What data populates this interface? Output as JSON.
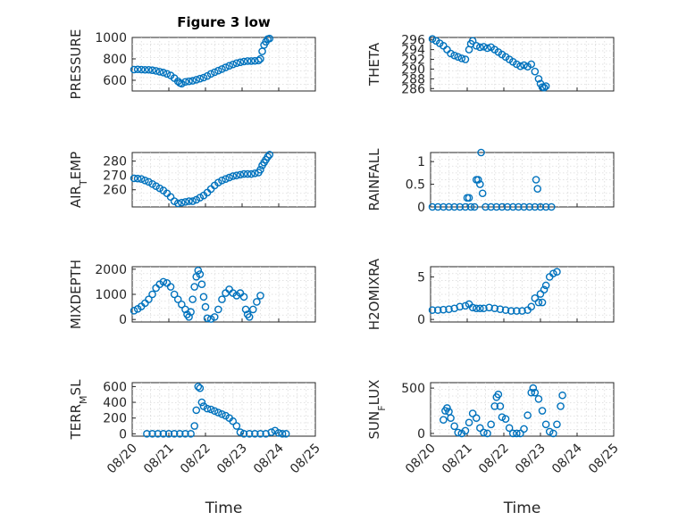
{
  "chart_data": [
    {
      "type": "scatter",
      "title": "Figure 3 low",
      "ylabel": "PRESSURE",
      "ylim": [
        500,
        1000
      ],
      "yticks": [
        "1000",
        "800",
        "600"
      ],
      "ytick_values": [
        1000,
        800,
        600
      ],
      "grid": true,
      "points": [
        [
          0.05,
          700
        ],
        [
          0.15,
          702
        ],
        [
          0.25,
          700
        ],
        [
          0.35,
          698
        ],
        [
          0.45,
          698
        ],
        [
          0.55,
          694
        ],
        [
          0.65,
          688
        ],
        [
          0.75,
          680
        ],
        [
          0.85,
          672
        ],
        [
          0.95,
          660
        ],
        [
          1.05,
          645
        ],
        [
          1.15,
          620
        ],
        [
          1.25,
          590
        ],
        [
          1.3,
          575
        ],
        [
          1.35,
          568
        ],
        [
          1.45,
          585
        ],
        [
          1.55,
          590
        ],
        [
          1.65,
          595
        ],
        [
          1.75,
          605
        ],
        [
          1.85,
          615
        ],
        [
          1.95,
          625
        ],
        [
          2.05,
          640
        ],
        [
          2.15,
          660
        ],
        [
          2.25,
          675
        ],
        [
          2.35,
          690
        ],
        [
          2.45,
          705
        ],
        [
          2.55,
          720
        ],
        [
          2.65,
          735
        ],
        [
          2.75,
          748
        ],
        [
          2.85,
          760
        ],
        [
          2.95,
          768
        ],
        [
          3.05,
          775
        ],
        [
          3.15,
          780
        ],
        [
          3.25,
          780
        ],
        [
          3.35,
          782
        ],
        [
          3.45,
          785
        ],
        [
          3.5,
          800
        ],
        [
          3.55,
          870
        ],
        [
          3.6,
          930
        ],
        [
          3.65,
          960
        ],
        [
          3.7,
          985
        ],
        [
          3.75,
          990
        ]
      ]
    },
    {
      "type": "scatter",
      "ylabel": "THETA",
      "ylim": [
        285.5,
        296.5
      ],
      "yticks": [
        "296",
        "294",
        "292",
        "290",
        "288",
        "286"
      ],
      "ytick_values": [
        296,
        294,
        292,
        290,
        288,
        286
      ],
      "grid": true,
      "points": [
        [
          0.05,
          296.2
        ],
        [
          0.15,
          295.8
        ],
        [
          0.25,
          295.3
        ],
        [
          0.35,
          294.8
        ],
        [
          0.45,
          294.0
        ],
        [
          0.55,
          293.2
        ],
        [
          0.65,
          292.8
        ],
        [
          0.75,
          292.5
        ],
        [
          0.85,
          292.2
        ],
        [
          0.95,
          292.0
        ],
        [
          1.05,
          294.0
        ],
        [
          1.1,
          295.2
        ],
        [
          1.15,
          295.8
        ],
        [
          1.25,
          294.8
        ],
        [
          1.35,
          294.5
        ],
        [
          1.45,
          294.6
        ],
        [
          1.55,
          294.3
        ],
        [
          1.65,
          294.5
        ],
        [
          1.75,
          294.0
        ],
        [
          1.85,
          293.5
        ],
        [
          1.95,
          293.0
        ],
        [
          2.05,
          292.5
        ],
        [
          2.15,
          292.0
        ],
        [
          2.25,
          291.5
        ],
        [
          2.35,
          291.0
        ],
        [
          2.45,
          290.6
        ],
        [
          2.55,
          290.8
        ],
        [
          2.65,
          290.5
        ],
        [
          2.75,
          291.0
        ],
        [
          2.85,
          289.5
        ],
        [
          2.95,
          288.0
        ],
        [
          3.0,
          287.0
        ],
        [
          3.05,
          286.3
        ],
        [
          3.1,
          286.2
        ],
        [
          3.15,
          286.5
        ]
      ]
    },
    {
      "type": "scatter",
      "ylabel": "AIR",
      "ylabel_sub": "T",
      "ylabel_rest": "EMP",
      "ylim": [
        248,
        286
      ],
      "yticks": [
        "280",
        "270",
        "260"
      ],
      "ytick_values": [
        280,
        270,
        260
      ],
      "grid": true,
      "points": [
        [
          0.05,
          268
        ],
        [
          0.15,
          267.8
        ],
        [
          0.25,
          267.5
        ],
        [
          0.35,
          266.5
        ],
        [
          0.45,
          265.5
        ],
        [
          0.55,
          264
        ],
        [
          0.65,
          262.5
        ],
        [
          0.75,
          261
        ],
        [
          0.85,
          259.5
        ],
        [
          0.95,
          257.5
        ],
        [
          1.05,
          255
        ],
        [
          1.15,
          252
        ],
        [
          1.25,
          250.5
        ],
        [
          1.35,
          251
        ],
        [
          1.45,
          251.5
        ],
        [
          1.55,
          252
        ],
        [
          1.65,
          252
        ],
        [
          1.75,
          253
        ],
        [
          1.85,
          254.5
        ],
        [
          1.95,
          256
        ],
        [
          2.05,
          258
        ],
        [
          2.15,
          260.5
        ],
        [
          2.25,
          263
        ],
        [
          2.35,
          265
        ],
        [
          2.45,
          266.5
        ],
        [
          2.55,
          267.5
        ],
        [
          2.65,
          268.5
        ],
        [
          2.75,
          269.5
        ],
        [
          2.85,
          270
        ],
        [
          2.95,
          270.5
        ],
        [
          3.05,
          271
        ],
        [
          3.15,
          271
        ],
        [
          3.25,
          271
        ],
        [
          3.35,
          271.5
        ],
        [
          3.45,
          272
        ],
        [
          3.5,
          274
        ],
        [
          3.55,
          277
        ],
        [
          3.6,
          279
        ],
        [
          3.65,
          281
        ],
        [
          3.7,
          283
        ],
        [
          3.75,
          284.5
        ]
      ]
    },
    {
      "type": "scatter",
      "ylabel": "RAINFALL",
      "ylim": [
        0,
        1.2
      ],
      "yticks": [
        "1",
        "0.5",
        "0"
      ],
      "ytick_values": [
        1,
        0.5,
        0
      ],
      "grid": true,
      "points": [
        [
          0.05,
          0
        ],
        [
          0.2,
          0
        ],
        [
          0.35,
          0
        ],
        [
          0.5,
          0
        ],
        [
          0.65,
          0
        ],
        [
          0.8,
          0
        ],
        [
          0.95,
          0
        ],
        [
          1.0,
          0.2
        ],
        [
          1.05,
          0.2
        ],
        [
          1.1,
          0
        ],
        [
          1.2,
          0
        ],
        [
          1.25,
          0.6
        ],
        [
          1.3,
          0.6
        ],
        [
          1.35,
          0.5
        ],
        [
          1.38,
          1.2
        ],
        [
          1.42,
          0.3
        ],
        [
          1.5,
          0
        ],
        [
          1.65,
          0
        ],
        [
          1.8,
          0
        ],
        [
          1.95,
          0
        ],
        [
          2.1,
          0
        ],
        [
          2.25,
          0
        ],
        [
          2.4,
          0
        ],
        [
          2.55,
          0
        ],
        [
          2.7,
          0
        ],
        [
          2.85,
          0
        ],
        [
          2.88,
          0.6
        ],
        [
          2.92,
          0.4
        ],
        [
          3.0,
          0
        ],
        [
          3.15,
          0
        ],
        [
          3.3,
          0
        ]
      ]
    },
    {
      "type": "scatter",
      "ylabel": "MIXDEPTH",
      "ylim": [
        -100,
        2100
      ],
      "yticks": [
        "2000",
        "1000",
        "0"
      ],
      "ytick_values": [
        2000,
        1000,
        0
      ],
      "grid": true,
      "points": [
        [
          0.05,
          350
        ],
        [
          0.15,
          420
        ],
        [
          0.25,
          520
        ],
        [
          0.35,
          650
        ],
        [
          0.45,
          800
        ],
        [
          0.55,
          1000
        ],
        [
          0.65,
          1250
        ],
        [
          0.75,
          1400
        ],
        [
          0.85,
          1500
        ],
        [
          0.95,
          1450
        ],
        [
          1.05,
          1300
        ],
        [
          1.15,
          1000
        ],
        [
          1.25,
          800
        ],
        [
          1.35,
          600
        ],
        [
          1.45,
          400
        ],
        [
          1.5,
          200
        ],
        [
          1.55,
          100
        ],
        [
          1.6,
          300
        ],
        [
          1.65,
          800
        ],
        [
          1.7,
          1300
        ],
        [
          1.75,
          1700
        ],
        [
          1.8,
          1950
        ],
        [
          1.85,
          1800
        ],
        [
          1.9,
          1400
        ],
        [
          1.95,
          900
        ],
        [
          2.0,
          500
        ],
        [
          2.05,
          50
        ],
        [
          2.15,
          20
        ],
        [
          2.25,
          100
        ],
        [
          2.35,
          400
        ],
        [
          2.45,
          800
        ],
        [
          2.55,
          1050
        ],
        [
          2.65,
          1200
        ],
        [
          2.75,
          1050
        ],
        [
          2.85,
          950
        ],
        [
          2.95,
          1050
        ],
        [
          3.05,
          900
        ],
        [
          3.1,
          400
        ],
        [
          3.15,
          200
        ],
        [
          3.2,
          100
        ],
        [
          3.3,
          400
        ],
        [
          3.4,
          700
        ],
        [
          3.5,
          950
        ]
      ]
    },
    {
      "type": "scatter",
      "ylabel": "H2OMIXRA",
      "ylim": [
        -0.3,
        6.2
      ],
      "yticks": [
        "5",
        "0"
      ],
      "ytick_values": [
        5,
        0
      ],
      "grid": true,
      "points": [
        [
          0.05,
          1.1
        ],
        [
          0.2,
          1.1
        ],
        [
          0.35,
          1.15
        ],
        [
          0.5,
          1.2
        ],
        [
          0.65,
          1.3
        ],
        [
          0.8,
          1.5
        ],
        [
          0.95,
          1.6
        ],
        [
          1.05,
          1.8
        ],
        [
          1.15,
          1.4
        ],
        [
          1.25,
          1.3
        ],
        [
          1.35,
          1.3
        ],
        [
          1.45,
          1.3
        ],
        [
          1.6,
          1.4
        ],
        [
          1.75,
          1.3
        ],
        [
          1.9,
          1.2
        ],
        [
          2.05,
          1.1
        ],
        [
          2.2,
          1.0
        ],
        [
          2.35,
          1.0
        ],
        [
          2.5,
          1.0
        ],
        [
          2.65,
          1.1
        ],
        [
          2.75,
          1.5
        ],
        [
          2.85,
          2.5
        ],
        [
          2.95,
          2.0
        ],
        [
          3.0,
          3.0
        ],
        [
          3.05,
          2.0
        ],
        [
          3.1,
          3.5
        ],
        [
          3.15,
          4.0
        ],
        [
          3.25,
          5.0
        ],
        [
          3.35,
          5.4
        ],
        [
          3.45,
          5.6
        ]
      ]
    },
    {
      "type": "scatter",
      "ylabel": "TERR",
      "ylabel_sub": "M",
      "ylabel_rest": "SL",
      "ylim": [
        -30,
        650
      ],
      "yticks": [
        "600",
        "400",
        "200",
        "0"
      ],
      "ytick_values": [
        600,
        400,
        200,
        0
      ],
      "xticks": [
        "08/20",
        "08/21",
        "08/22",
        "08/23",
        "08/24",
        "08/25"
      ],
      "xlim": [
        0,
        5
      ],
      "xlabel": "Time",
      "grid": true,
      "points": [
        [
          0.4,
          0
        ],
        [
          0.55,
          0
        ],
        [
          0.7,
          0
        ],
        [
          0.85,
          0
        ],
        [
          1.0,
          0
        ],
        [
          1.15,
          0
        ],
        [
          1.3,
          0
        ],
        [
          1.45,
          0
        ],
        [
          1.6,
          0
        ],
        [
          1.7,
          100
        ],
        [
          1.75,
          300
        ],
        [
          1.8,
          600
        ],
        [
          1.85,
          580
        ],
        [
          1.9,
          400
        ],
        [
          1.95,
          350
        ],
        [
          2.05,
          320
        ],
        [
          2.15,
          310
        ],
        [
          2.25,
          290
        ],
        [
          2.35,
          270
        ],
        [
          2.45,
          250
        ],
        [
          2.55,
          230
        ],
        [
          2.65,
          200
        ],
        [
          2.75,
          160
        ],
        [
          2.85,
          100
        ],
        [
          2.95,
          20
        ],
        [
          3.05,
          0
        ],
        [
          3.2,
          0
        ],
        [
          3.35,
          0
        ],
        [
          3.5,
          0
        ],
        [
          3.65,
          0
        ],
        [
          3.8,
          20
        ],
        [
          3.9,
          40
        ],
        [
          4.0,
          10
        ],
        [
          4.1,
          0
        ],
        [
          4.2,
          0
        ]
      ]
    },
    {
      "type": "scatter",
      "ylabel": "SUN",
      "ylabel_sub": "F",
      "ylabel_rest": "LUX",
      "ylim": [
        -30,
        560
      ],
      "yticks": [
        "500",
        "0"
      ],
      "ytick_values": [
        500,
        0
      ],
      "xticks": [
        "08/20",
        "08/21",
        "08/22",
        "08/23",
        "08/24",
        "08/25"
      ],
      "xlim": [
        0,
        5
      ],
      "xlabel": "Time",
      "grid": true,
      "points": [
        [
          0.35,
          150
        ],
        [
          0.4,
          250
        ],
        [
          0.45,
          280
        ],
        [
          0.5,
          240
        ],
        [
          0.55,
          170
        ],
        [
          0.65,
          80
        ],
        [
          0.75,
          10
        ],
        [
          0.85,
          0
        ],
        [
          0.95,
          30
        ],
        [
          1.05,
          120
        ],
        [
          1.15,
          220
        ],
        [
          1.25,
          170
        ],
        [
          1.35,
          60
        ],
        [
          1.45,
          10
        ],
        [
          1.55,
          0
        ],
        [
          1.65,
          100
        ],
        [
          1.75,
          300
        ],
        [
          1.8,
          400
        ],
        [
          1.85,
          430
        ],
        [
          1.9,
          300
        ],
        [
          1.95,
          180
        ],
        [
          2.05,
          160
        ],
        [
          2.15,
          60
        ],
        [
          2.25,
          0
        ],
        [
          2.35,
          0
        ],
        [
          2.45,
          0
        ],
        [
          2.55,
          50
        ],
        [
          2.65,
          200
        ],
        [
          2.75,
          450
        ],
        [
          2.8,
          500
        ],
        [
          2.85,
          450
        ],
        [
          2.95,
          380
        ],
        [
          3.05,
          250
        ],
        [
          3.15,
          100
        ],
        [
          3.25,
          20
        ],
        [
          3.35,
          0
        ],
        [
          3.45,
          100
        ],
        [
          3.55,
          300
        ],
        [
          3.6,
          420
        ]
      ]
    }
  ]
}
